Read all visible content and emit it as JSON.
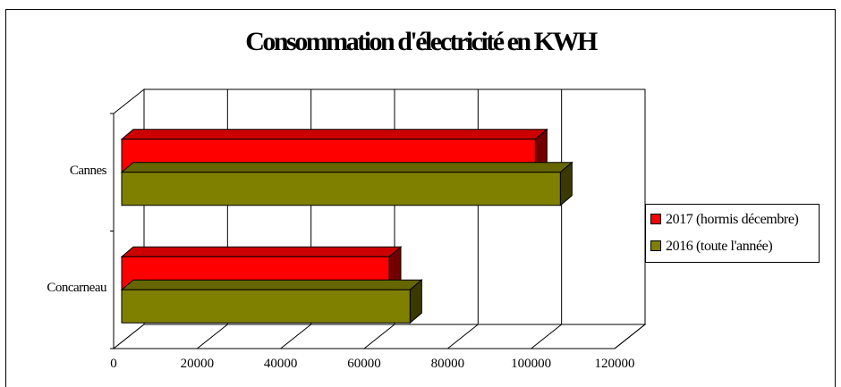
{
  "chart_data": {
    "type": "bar",
    "orientation": "horizontal",
    "title": "Consommation d'électricité en KWH",
    "xlabel": "",
    "ylabel": "",
    "xlim": [
      0,
      120000
    ],
    "ticks": [
      "0",
      "20000",
      "40000",
      "60000",
      "80000",
      "100000",
      "120000"
    ],
    "tick_values": [
      0,
      20000,
      40000,
      60000,
      80000,
      100000,
      120000
    ],
    "categories": [
      "Cannes",
      "Concarneau"
    ],
    "series": [
      {
        "name": "2017 (hormis décembre)",
        "values": [
          101000,
          66000
        ],
        "color": "#ff0000"
      },
      {
        "name": "2016 (toute l'année)",
        "values": [
          107000,
          71000
        ],
        "color": "#808000"
      }
    ],
    "grid": true,
    "legend_position": "right",
    "style": "3d"
  }
}
